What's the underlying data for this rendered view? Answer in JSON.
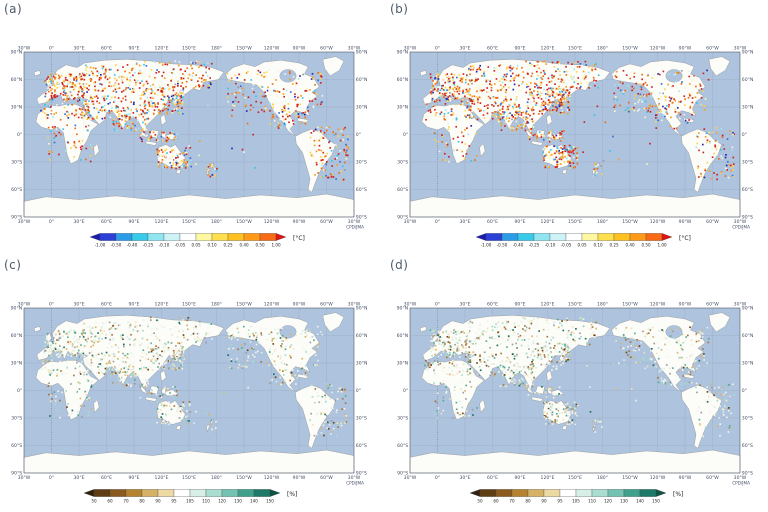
{
  "figure": {
    "panels": [
      {
        "label": "(a)",
        "kind": "temp",
        "seed": 11
      },
      {
        "label": "(b)",
        "kind": "temp",
        "seed": 47
      },
      {
        "label": "(c)",
        "kind": "precip",
        "seed": 83
      },
      {
        "label": "(d)",
        "kind": "precip",
        "seed": 129
      }
    ],
    "credit": "CPD/JMA",
    "axes": {
      "lon_labels": [
        "30°W",
        "0°",
        "30°E",
        "60°E",
        "90°E",
        "120°E",
        "150°E",
        "180°",
        "150°W",
        "120°W",
        "90°W",
        "60°W",
        "30°W"
      ],
      "lat_labels": [
        "90°N",
        "60°N",
        "30°N",
        "0°",
        "30°S",
        "60°S",
        "90°S"
      ]
    },
    "colorbars": {
      "temp": {
        "unit": "[°C]",
        "ticks": [
          "-1.00",
          "-0.50",
          "-0.40",
          "-0.25",
          "-0.10",
          "-0.05",
          "0.05",
          "0.10",
          "0.25",
          "0.40",
          "0.50",
          "1.00"
        ],
        "arrow_left": "#1c1cae",
        "colors": [
          "#2c40d6",
          "#2d9ce8",
          "#38cbe9",
          "#90e5f0",
          "#cdf3f6",
          "#ffffff",
          "#fff8a0",
          "#ffdf4e",
          "#ffc021",
          "#ff9a18",
          "#f96a16"
        ],
        "arrow_right": "#dd1412"
      },
      "precip": {
        "unit": "[%]",
        "ticks": [
          "50",
          "60",
          "70",
          "80",
          "90",
          "95",
          "105",
          "110",
          "120",
          "130",
          "140",
          "150"
        ],
        "arrow_left": "#33210c",
        "colors": [
          "#5f3c12",
          "#8a5a1e",
          "#b5832f",
          "#d5b266",
          "#eddaa2",
          "#ffffff",
          "#d7efe7",
          "#a9ddd0",
          "#74c2b2",
          "#3fa08c",
          "#1e7a68"
        ],
        "arrow_right": "#0e5243"
      }
    },
    "map_colors": {
      "ocean": "#aec3dd",
      "land": "#fcfcf8",
      "coast": "#8a8a8a",
      "grid": "#97a8c3",
      "frame": "#5a6270",
      "label_text": "#445066"
    },
    "dot_palettes": {
      "temp": [
        [
          "#cf2020",
          24
        ],
        [
          "#ef6a10",
          14
        ],
        [
          "#f79c1c",
          12
        ],
        [
          "#ffd24a",
          12
        ],
        [
          "#fff9b0",
          8
        ],
        [
          "#f3f3ec",
          8
        ],
        [
          "#9fe8f0",
          6
        ],
        [
          "#35c4e8",
          6
        ],
        [
          "#2f6fd8",
          5
        ],
        [
          "#2222b0",
          3
        ],
        [
          "#999999",
          2
        ]
      ],
      "precip": [
        [
          "#f6f3ea",
          26
        ],
        [
          "#efe3bd",
          12
        ],
        [
          "#d9efe8",
          14
        ],
        [
          "#a5dccc",
          11
        ],
        [
          "#53ab95",
          7
        ],
        [
          "#196e5c",
          3
        ],
        [
          "#d9b46e",
          9
        ],
        [
          "#a87434",
          7
        ],
        [
          "#6b4414",
          3
        ],
        [
          "#9c9c9c",
          8
        ]
      ]
    },
    "dot_counts": {
      "temp": 1400,
      "precip": 1150
    }
  }
}
